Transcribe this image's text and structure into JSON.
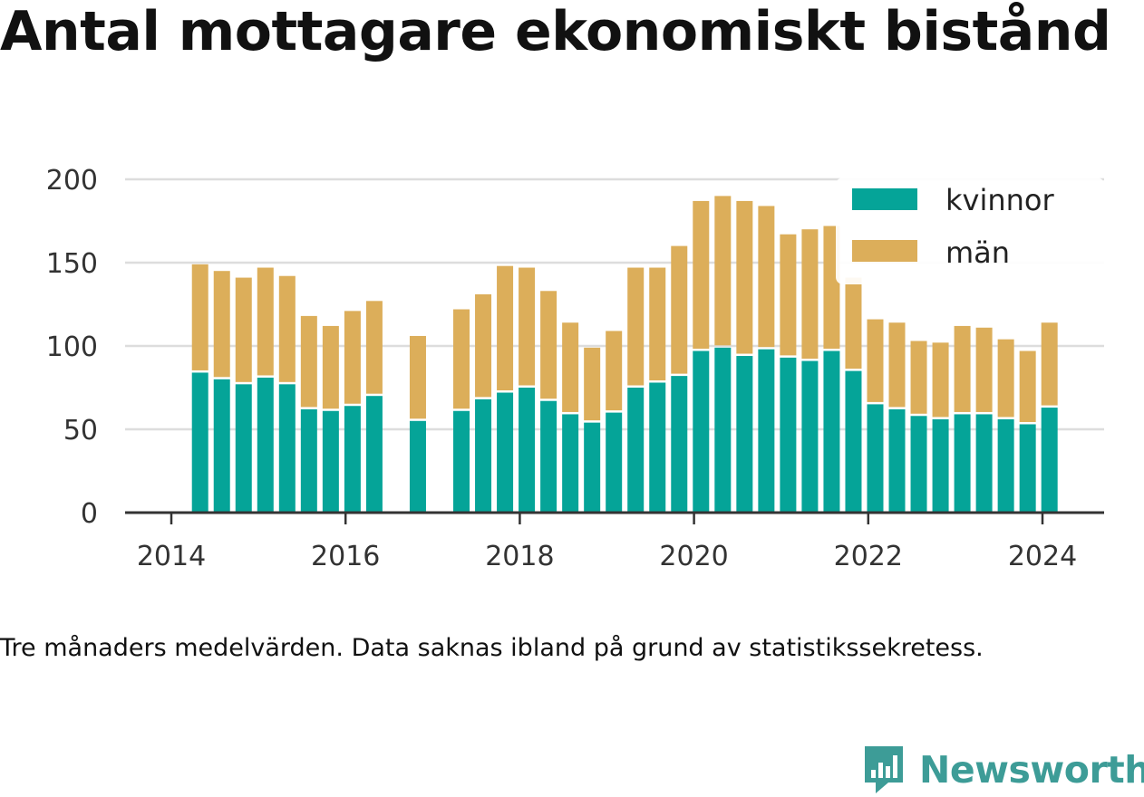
{
  "title": "Antal mottagare ekonomiskt bistånd",
  "caption": "Tre månaders medelvärden. Data saknas ibland på grund av statistikssekretess.",
  "logo": {
    "text": "Newsworthy",
    "icon": "bar-chart-speech-bubble-icon"
  },
  "colors": {
    "kvinnor": "#05a498",
    "man": "#dcae5a",
    "grid": "#dddddd",
    "axis": "#333333",
    "logo": "#3d9c97"
  },
  "chart_data": {
    "type": "bar",
    "stacked": true,
    "title": "Antal mottagare ekonomiskt bistånd",
    "xlabel": "",
    "ylabel": "",
    "ylim": [
      0,
      200
    ],
    "yticks": [
      0,
      50,
      100,
      150,
      200
    ],
    "xticks": [
      2014,
      2016,
      2018,
      2020,
      2022,
      2024
    ],
    "xlim": [
      2013.45,
      2024.75
    ],
    "grid": true,
    "legend": "top-right",
    "x": [
      2014.33,
      2014.58,
      2014.83,
      2015.08,
      2015.33,
      2015.58,
      2015.83,
      2016.08,
      2016.33,
      2016.83,
      2017.33,
      2017.58,
      2017.83,
      2018.08,
      2018.33,
      2018.58,
      2018.83,
      2019.08,
      2019.33,
      2019.58,
      2019.83,
      2020.08,
      2020.33,
      2020.58,
      2020.83,
      2021.08,
      2021.33,
      2021.58,
      2021.83,
      2022.08,
      2022.33,
      2022.58,
      2022.83,
      2023.08,
      2023.33,
      2023.58,
      2023.83,
      2024.08
    ],
    "series": [
      {
        "name": "kvinnor",
        "values": [
          84,
          80,
          77,
          81,
          77,
          62,
          61,
          64,
          70,
          55,
          61,
          68,
          72,
          75,
          67,
          59,
          54,
          60,
          75,
          78,
          82,
          97,
          99,
          94,
          98,
          93,
          91,
          97,
          85,
          65,
          62,
          58,
          56,
          59,
          59,
          56,
          53,
          63
        ]
      },
      {
        "name": "män",
        "values": [
          65,
          65,
          64,
          66,
          65,
          56,
          51,
          57,
          57,
          51,
          61,
          63,
          76,
          72,
          66,
          55,
          45,
          49,
          72,
          69,
          78,
          90,
          91,
          93,
          86,
          74,
          79,
          75,
          56,
          51,
          52,
          45,
          46,
          53,
          52,
          48,
          44,
          51
        ]
      }
    ]
  }
}
